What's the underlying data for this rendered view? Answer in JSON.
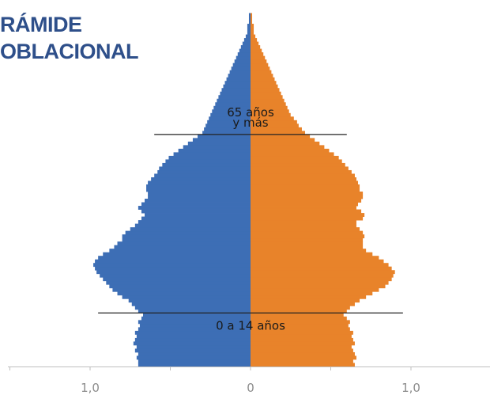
{
  "title": {
    "line1": "RÁMIDE",
    "line2": "OBLACIONAL"
  },
  "colors": {
    "left": "#3d6eb5",
    "right": "#e8832a",
    "axis": "#bfbfbf",
    "marker_line": "#222222",
    "title": "#2e4f8a",
    "text": "#1a1a1a",
    "tick_text": "#8c8c8c"
  },
  "chart_data": {
    "type": "bar",
    "orientation": "horizontal",
    "layout": "population-pyramid",
    "title": "RÁMIDE OBLACIONAL",
    "xlabel": "",
    "ylabel": "",
    "ages_order": "bottom-to-top (index 0 = youngest)",
    "age_bins": 100,
    "xlim": [
      -1.6,
      1.6
    ],
    "grid": false,
    "legend": "none",
    "x_ticks": [
      "1,0",
      "0",
      "1,0"
    ],
    "annotations": [
      {
        "text_lines": [
          "65 años",
          "y más"
        ],
        "age": 65,
        "line_extent": [
          -0.6,
          0.6
        ]
      },
      {
        "text_lines": [
          "0 a 14 años"
        ],
        "age": 15,
        "line_extent": [
          -0.95,
          0.95
        ]
      }
    ],
    "series": [
      {
        "side": "left",
        "values": [
          0.7,
          0.7,
          0.71,
          0.7,
          0.72,
          0.71,
          0.73,
          0.72,
          0.71,
          0.72,
          0.7,
          0.69,
          0.7,
          0.68,
          0.67,
          0.7,
          0.72,
          0.74,
          0.76,
          0.8,
          0.83,
          0.86,
          0.88,
          0.9,
          0.92,
          0.94,
          0.96,
          0.97,
          0.98,
          0.97,
          0.95,
          0.92,
          0.88,
          0.85,
          0.83,
          0.8,
          0.8,
          0.78,
          0.75,
          0.72,
          0.7,
          0.68,
          0.66,
          0.68,
          0.7,
          0.68,
          0.66,
          0.64,
          0.64,
          0.65,
          0.65,
          0.64,
          0.62,
          0.6,
          0.58,
          0.57,
          0.55,
          0.53,
          0.51,
          0.48,
          0.45,
          0.42,
          0.39,
          0.36,
          0.33,
          0.3,
          0.29,
          0.28,
          0.27,
          0.26,
          0.25,
          0.24,
          0.23,
          0.22,
          0.21,
          0.2,
          0.19,
          0.18,
          0.17,
          0.16,
          0.15,
          0.14,
          0.13,
          0.12,
          0.11,
          0.1,
          0.09,
          0.08,
          0.07,
          0.06,
          0.05,
          0.04,
          0.03,
          0.02,
          0.02,
          0.02,
          0.01,
          0.01,
          0.01,
          0.0
        ]
      },
      {
        "side": "right",
        "values": [
          0.65,
          0.64,
          0.66,
          0.65,
          0.64,
          0.63,
          0.65,
          0.64,
          0.63,
          0.64,
          0.62,
          0.61,
          0.62,
          0.6,
          0.58,
          0.6,
          0.62,
          0.65,
          0.68,
          0.72,
          0.76,
          0.8,
          0.84,
          0.86,
          0.88,
          0.89,
          0.9,
          0.88,
          0.86,
          0.83,
          0.8,
          0.76,
          0.72,
          0.7,
          0.7,
          0.7,
          0.71,
          0.7,
          0.68,
          0.66,
          0.66,
          0.7,
          0.71,
          0.69,
          0.66,
          0.67,
          0.69,
          0.7,
          0.7,
          0.68,
          0.68,
          0.67,
          0.66,
          0.65,
          0.63,
          0.61,
          0.59,
          0.57,
          0.55,
          0.52,
          0.49,
          0.46,
          0.43,
          0.4,
          0.37,
          0.34,
          0.32,
          0.3,
          0.29,
          0.27,
          0.25,
          0.24,
          0.23,
          0.22,
          0.21,
          0.2,
          0.19,
          0.18,
          0.17,
          0.16,
          0.15,
          0.14,
          0.13,
          0.12,
          0.11,
          0.1,
          0.09,
          0.08,
          0.07,
          0.06,
          0.05,
          0.04,
          0.03,
          0.02,
          0.02,
          0.02,
          0.01,
          0.01,
          0.01,
          0.0
        ]
      }
    ]
  }
}
